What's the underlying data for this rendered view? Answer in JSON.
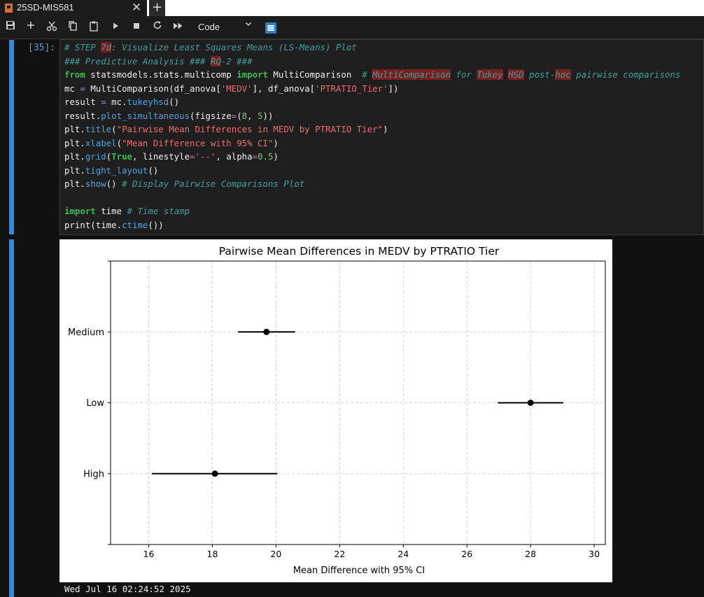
{
  "tab": {
    "label": "25SD-MIS581",
    "close": "✕",
    "new": "+"
  },
  "toolbar": {
    "icons": [
      "save-icon",
      "add-cell-icon",
      "cut-icon",
      "copy-icon",
      "paste-icon",
      "run-icon",
      "stop-icon",
      "restart-icon",
      "run-all-icon"
    ],
    "cell_type": "Code",
    "accent": "#2d7fc5"
  },
  "cell": {
    "prompt": "[35]:",
    "code": {
      "l1a": "# STEP ",
      "l1hl": "7d",
      "l1b": ": Visualize Least Squares Means (LS-Means) Plot",
      "l2a": "### Predictive Analysis ### ",
      "l2hl": "RQ",
      "l2b": "-2 ###",
      "l3from": "from",
      "l3mod": " statsmodels.stats.multicomp ",
      "l3imp": "import",
      "l3name": " MultiComparison  ",
      "l3c1": "# ",
      "l3h1": "MultiComparison",
      "l3c2": " for ",
      "l3h2": "Tukey",
      "l3c3": " ",
      "l3h3": "HSD",
      "l3c4": " post-",
      "l3h4": "hoc",
      "l3c5": " pairwise comparisons",
      "l4a": "mc ",
      "l4eq": "=",
      "l4b": " MultiComparison(df_anova[",
      "l4s1": "'MEDV'",
      "l4c": "], df_anova[",
      "l4s2": "'PTRATIO_Tier'",
      "l4d": "])",
      "l5a": "result ",
      "l5eq": "=",
      "l5b": " mc.",
      "l5f": "tukeyhsd",
      "l5c": "()",
      "l6a": "result.",
      "l6f": "plot_simultaneous",
      "l6b": "(figsize",
      "l6eq": "=",
      "l6c": "(",
      "l6n1": "8",
      "l6d": ", ",
      "l6n2": "5",
      "l6e": "))",
      "l7a": "plt.",
      "l7f": "title",
      "l7b": "(",
      "l7s": "\"Pairwise Mean Differences in MEDV by PTRATIO Tier\"",
      "l7c": ")",
      "l8a": "plt.",
      "l8f": "xlabel",
      "l8b": "(",
      "l8s": "\"Mean Difference with 95% CI\"",
      "l8c": ")",
      "l9a": "plt.",
      "l9f": "grid",
      "l9b": "(",
      "l9t": "True",
      "l9c": ", linestyle",
      "l9eq": "=",
      "l9s": "'--'",
      "l9d": ", alpha",
      "l9eq2": "=",
      "l9n": "0.5",
      "l9e": ")",
      "l10a": "plt.",
      "l10f": "tight_layout",
      "l10b": "()",
      "l11a": "plt.",
      "l11f": "show",
      "l11b": "() ",
      "l11c": "# Display Pairwise Comparisons Plot",
      "l13imp": "import",
      "l13a": " time ",
      "l13c": "# Time stamp",
      "l14a": "print(time.",
      "l14f": "ctime",
      "l14b": "())"
    }
  },
  "chart_data": {
    "type": "scatter",
    "title": "Pairwise Mean Differences in MEDV by PTRATIO Tier",
    "xlabel": "Mean Difference with 95% CI",
    "ylabel": "",
    "xlim": [
      14.8,
      30.35
    ],
    "x_ticks": [
      16,
      18,
      20,
      22,
      24,
      26,
      28,
      30
    ],
    "categories": [
      "Medium",
      "Low",
      "High"
    ],
    "means": [
      19.7,
      28.0,
      18.08
    ],
    "ci_low": [
      18.8,
      26.97,
      16.1
    ],
    "ci_high": [
      20.6,
      29.03,
      20.04
    ],
    "grid": true,
    "grid_style": "dashed"
  },
  "output": {
    "timestamp": "Wed Jul 16 02:24:52 2025"
  }
}
